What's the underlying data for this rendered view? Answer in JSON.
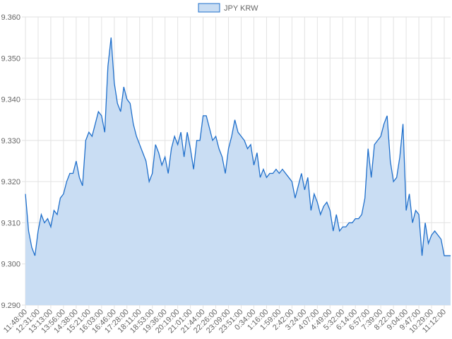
{
  "chart_data": {
    "type": "area",
    "categories": [
      "11:48:00",
      null,
      null,
      null,
      "12:31:00",
      null,
      null,
      null,
      "13:13:00",
      null,
      null,
      null,
      "13:56:00",
      null,
      null,
      null,
      "14:38:00",
      null,
      null,
      null,
      "15:21:00",
      null,
      null,
      null,
      "16:03:00",
      null,
      null,
      null,
      "16:46:00",
      null,
      null,
      null,
      "17:28:00",
      null,
      null,
      null,
      "18:11:00",
      null,
      null,
      null,
      "18:53:00",
      null,
      null,
      null,
      "19:36:00",
      null,
      null,
      null,
      "20:19:00",
      null,
      null,
      null,
      "21:01:00",
      null,
      null,
      null,
      "21:44:00",
      null,
      null,
      null,
      "22:26:00",
      null,
      null,
      null,
      "23:09:00",
      null,
      null,
      null,
      "23:51:00",
      null,
      null,
      null,
      "0:34:00",
      null,
      null,
      null,
      "1:16:00",
      null,
      null,
      null,
      "1:59:00",
      null,
      null,
      null,
      "2:42:00",
      null,
      null,
      null,
      "3:24:00",
      null,
      null,
      null,
      "4:07:00",
      null,
      null,
      null,
      "4:49:00",
      null,
      null,
      null,
      "5:32:00",
      null,
      null,
      null,
      "6:14:00",
      null,
      null,
      null,
      "6:57:00",
      null,
      null,
      null,
      "7:39:00",
      null,
      null,
      null,
      "8:22:00",
      null,
      null,
      null,
      "9:04:00",
      null,
      null,
      null,
      "9:47:00",
      null,
      null,
      null,
      "10:29:00",
      null,
      null,
      null,
      "11:12:00",
      null,
      null
    ],
    "series": [
      {
        "name": "JPY KRW",
        "color": "#1f6fcb",
        "fill": "#c9ddf3",
        "values": [
          9.317,
          9.308,
          9.304,
          9.302,
          9.308,
          9.312,
          9.31,
          9.311,
          9.309,
          9.313,
          9.312,
          9.316,
          9.317,
          9.32,
          9.322,
          9.322,
          9.325,
          9.321,
          9.319,
          9.33,
          9.332,
          9.331,
          9.334,
          9.337,
          9.336,
          9.332,
          9.348,
          9.355,
          9.344,
          9.339,
          9.337,
          9.343,
          9.34,
          9.339,
          9.334,
          9.331,
          9.329,
          9.327,
          9.325,
          9.32,
          9.322,
          9.329,
          9.327,
          9.324,
          9.326,
          9.322,
          9.328,
          9.331,
          9.329,
          9.332,
          9.326,
          9.332,
          9.328,
          9.323,
          9.33,
          9.33,
          9.336,
          9.336,
          9.333,
          9.33,
          9.331,
          9.328,
          9.326,
          9.322,
          9.328,
          9.331,
          9.335,
          9.332,
          9.331,
          9.33,
          9.328,
          9.329,
          9.324,
          9.327,
          9.321,
          9.323,
          9.321,
          9.322,
          9.322,
          9.323,
          9.322,
          9.323,
          9.322,
          9.321,
          9.32,
          9.316,
          9.319,
          9.322,
          9.318,
          9.321,
          9.313,
          9.317,
          9.315,
          9.312,
          9.314,
          9.315,
          9.313,
          9.308,
          9.312,
          9.308,
          9.309,
          9.309,
          9.31,
          9.31,
          9.311,
          9.311,
          9.312,
          9.316,
          9.328,
          9.321,
          9.329,
          9.33,
          9.331,
          9.334,
          9.336,
          9.325,
          9.32,
          9.321,
          9.326,
          9.334,
          9.313,
          9.317,
          9.31,
          9.313,
          9.312,
          9.302,
          9.31,
          9.305,
          9.307,
          9.308,
          9.307,
          9.306,
          9.302,
          9.302,
          9.302
        ]
      }
    ],
    "ylim": [
      9.29,
      9.36
    ],
    "yticks": [
      {
        "value": 9.29,
        "label": "9.290"
      },
      {
        "value": 9.3,
        "label": "9.300"
      },
      {
        "value": 9.31,
        "label": "9.310"
      },
      {
        "value": 9.32,
        "label": "9.320"
      },
      {
        "value": 9.33,
        "label": "9.330"
      },
      {
        "value": 9.34,
        "label": "9.340"
      },
      {
        "value": 9.35,
        "label": "9.350"
      },
      {
        "value": 9.36,
        "label": "9.360"
      }
    ],
    "grid": true,
    "legend": "top"
  }
}
